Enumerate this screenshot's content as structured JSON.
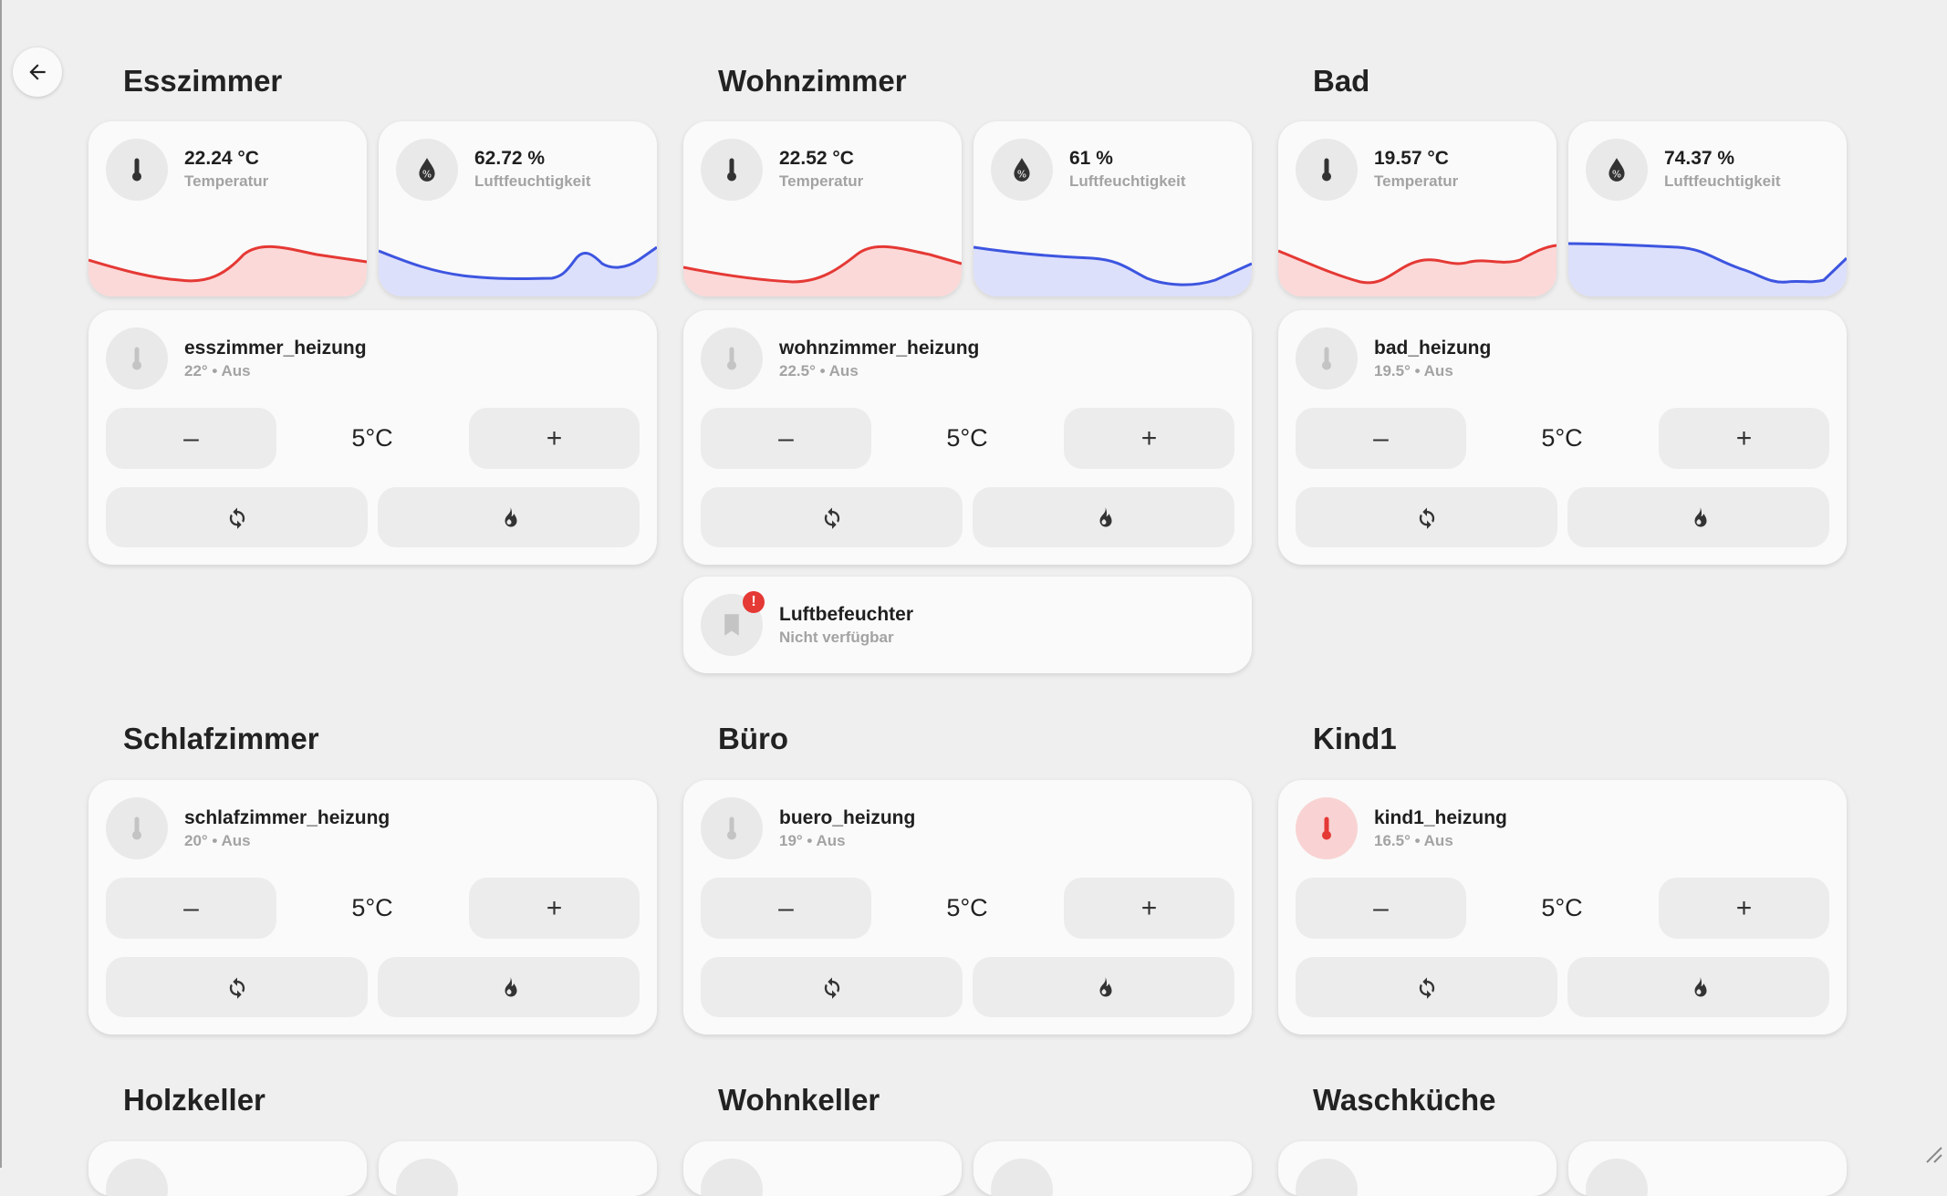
{
  "sections": {
    "esszimmer": {
      "title": "Esszimmer",
      "temperature": {
        "value": "22.24 °C",
        "label": "Temperatur"
      },
      "humidity": {
        "value": "62.72 %",
        "label": "Luftfeuchtigkeit"
      },
      "thermostat": {
        "name": "esszimmer_heizung",
        "state": "22° • Aus",
        "setpoint": "5°C"
      }
    },
    "wohnzimmer": {
      "title": "Wohnzimmer",
      "temperature": {
        "value": "22.52 °C",
        "label": "Temperatur"
      },
      "humidity": {
        "value": "61 %",
        "label": "Luftfeuchtigkeit"
      },
      "thermostat": {
        "name": "wohnzimmer_heizung",
        "state": "22.5° • Aus",
        "setpoint": "5°C"
      },
      "device": {
        "name": "Luftbefeuchter",
        "state": "Nicht verfügbar",
        "badge": "!"
      }
    },
    "bad": {
      "title": "Bad",
      "temperature": {
        "value": "19.57 °C",
        "label": "Temperatur"
      },
      "humidity": {
        "value": "74.37 %",
        "label": "Luftfeuchtigkeit"
      },
      "thermostat": {
        "name": "bad_heizung",
        "state": "19.5° • Aus",
        "setpoint": "5°C"
      }
    },
    "schlafzimmer": {
      "title": "Schlafzimmer",
      "thermostat": {
        "name": "schlafzimmer_heizung",
        "state": "20° • Aus",
        "setpoint": "5°C"
      }
    },
    "buero": {
      "title": "Büro",
      "thermostat": {
        "name": "buero_heizung",
        "state": "19° • Aus",
        "setpoint": "5°C"
      }
    },
    "kind1": {
      "title": "Kind1",
      "thermostat": {
        "name": "kind1_heizung",
        "state": "16.5° • Aus",
        "setpoint": "5°C"
      }
    },
    "holzkeller": {
      "title": "Holzkeller"
    },
    "wohnkeller": {
      "title": "Wohnkeller"
    },
    "waschkueche": {
      "title": "Waschküche"
    }
  },
  "buttons": {
    "minus": "–",
    "plus": "+"
  },
  "icons": {
    "back": "arrow-left-icon",
    "temperature": "thermometer-icon",
    "humidity": "water-percent-icon",
    "thermostat": "thermometer-icon",
    "mode_auto": "refresh-icon",
    "mode_heat": "fire-icon",
    "device": "bookmark-icon"
  },
  "colors": {
    "temperature_line": "#e53935",
    "temperature_fill": "#fbd9d8",
    "humidity_line": "#3d55e0",
    "humidity_fill": "#dde0fb",
    "heating_active": "#e53935",
    "badge": "#e53935"
  }
}
